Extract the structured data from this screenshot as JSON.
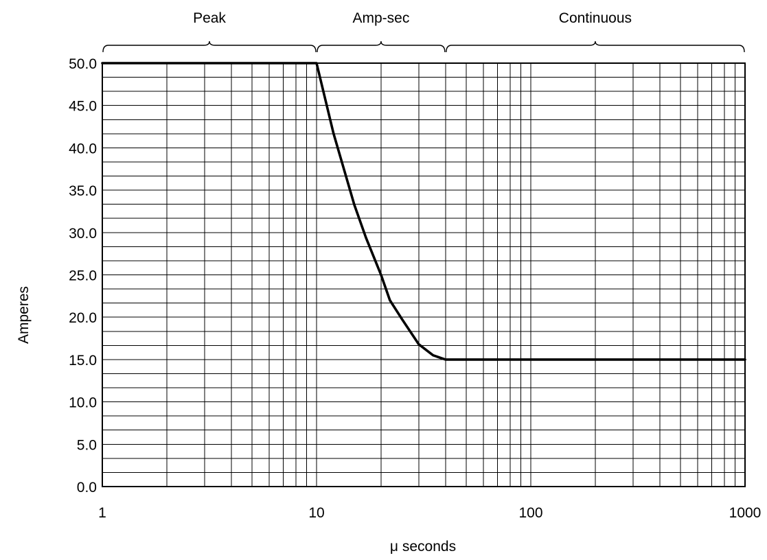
{
  "chart_data": {
    "type": "line",
    "xscale": "log",
    "xlim": [
      1,
      1000
    ],
    "ylim": [
      0,
      50
    ],
    "xlabel": "μ seconds",
    "ylabel": "Amperes",
    "x_tick_labels": [
      "1",
      "10",
      "100",
      "1000"
    ],
    "y_tick_labels": [
      "0.0",
      "5.0",
      "10.0",
      "15.0",
      "20.0",
      "25.0",
      "30.0",
      "35.0",
      "40.0",
      "45.0",
      "50.0"
    ],
    "y_ticks": [
      0,
      5,
      10,
      15,
      20,
      25,
      30,
      35,
      40,
      45,
      50
    ],
    "y_minor_step": 1.667,
    "grid": true,
    "regions": [
      {
        "label": "Peak",
        "from": 1,
        "to": 10
      },
      {
        "label": "Amp-sec",
        "from": 10,
        "to": 40
      },
      {
        "label": "Continuous",
        "from": 40,
        "to": 1000
      }
    ],
    "series": [
      {
        "x": [
          1,
          10,
          12,
          15,
          17,
          20,
          22,
          25,
          30,
          35,
          40,
          1000
        ],
        "y": [
          50,
          50,
          41.7,
          33.3,
          29.4,
          25,
          22,
          19.8,
          16.8,
          15.5,
          15,
          15
        ]
      }
    ]
  }
}
